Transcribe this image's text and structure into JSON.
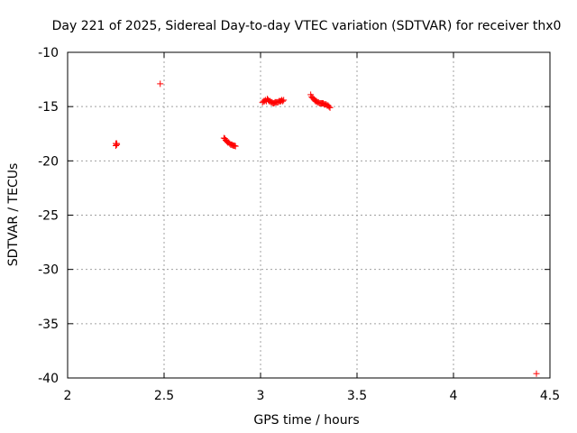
{
  "chart_data": {
    "type": "scatter",
    "title": "Day 221 of 2025, Sidereal Day-to-day VTEC variation (SDTVAR) for receiver thx0",
    "xlabel": "GPS time / hours",
    "ylabel": "SDTVAR / TECUs",
    "xlim": [
      2,
      4.5
    ],
    "ylim": [
      -40,
      -10
    ],
    "xticks": [
      "2",
      "2.5",
      "3",
      "3.5",
      "4",
      "4.5"
    ],
    "yticks": [
      "-10",
      "-15",
      "-20",
      "-25",
      "-30",
      "-35",
      "-40"
    ],
    "grid": true,
    "marker": "plus",
    "color": "#ff0000",
    "series": [
      {
        "x": [
          2.25,
          2.255,
          2.25,
          2.255,
          2.48,
          2.81,
          2.815,
          2.82,
          2.825,
          2.83,
          2.835,
          2.84,
          2.845,
          2.85,
          2.855,
          2.86,
          2.865,
          2.87,
          3.01,
          3.015,
          3.02,
          3.025,
          3.03,
          3.035,
          3.04,
          3.045,
          3.05,
          3.055,
          3.06,
          3.065,
          3.07,
          3.075,
          3.08,
          3.085,
          3.09,
          3.095,
          3.1,
          3.105,
          3.11,
          3.115,
          3.12,
          3.26,
          3.265,
          3.27,
          3.275,
          3.28,
          3.285,
          3.29,
          3.295,
          3.3,
          3.305,
          3.31,
          3.315,
          3.32,
          3.325,
          3.33,
          3.335,
          3.34,
          3.345,
          3.35,
          3.355,
          3.36,
          4.43
        ],
        "y": [
          -18.4,
          -18.5,
          -18.6,
          -18.4,
          -12.9,
          -17.9,
          -17.95,
          -18.1,
          -18.2,
          -18.3,
          -18.3,
          -18.4,
          -18.5,
          -18.5,
          -18.55,
          -18.6,
          -18.6,
          -18.65,
          -14.6,
          -14.5,
          -14.5,
          -14.4,
          -14.5,
          -14.3,
          -14.4,
          -14.5,
          -14.5,
          -14.6,
          -14.6,
          -14.7,
          -14.7,
          -14.6,
          -14.6,
          -14.6,
          -14.6,
          -14.5,
          -14.5,
          -14.5,
          -14.4,
          -14.5,
          -14.4,
          -13.9,
          -14.1,
          -14.2,
          -14.3,
          -14.4,
          -14.5,
          -14.5,
          -14.6,
          -14.6,
          -14.7,
          -14.7,
          -14.7,
          -14.7,
          -14.7,
          -14.8,
          -14.8,
          -14.8,
          -14.9,
          -14.9,
          -15.0,
          -15.1,
          -39.6
        ]
      }
    ]
  }
}
